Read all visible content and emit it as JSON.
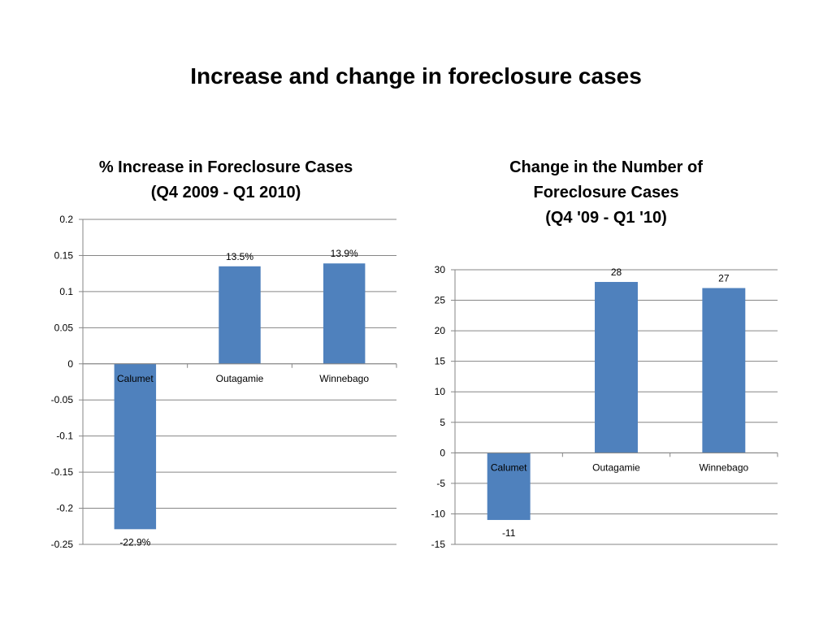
{
  "slide_title": "Increase and change in foreclosure cases",
  "colors": {
    "bar": "#4f81bd",
    "grid": "#868686",
    "text": "#000000"
  },
  "chart_data": [
    {
      "type": "bar",
      "title_lines": [
        "% Increase in Foreclosure Cases",
        "(Q4 2009 - Q1 2010)"
      ],
      "categories": [
        "Calumet",
        "Outagamie",
        "Winnebago"
      ],
      "values": [
        -0.229,
        0.135,
        0.139
      ],
      "data_labels": [
        "-22.9%",
        "13.5%",
        "13.9%"
      ],
      "ylim": [
        -0.25,
        0.2
      ],
      "ytick_labels": [
        "0.2",
        "0.15",
        "0.1",
        "0.05",
        "0",
        "-0.05",
        "-0.1",
        "-0.15",
        "-0.2",
        "-0.25"
      ],
      "grid": true,
      "xlabel": "",
      "ylabel": ""
    },
    {
      "type": "bar",
      "title_lines": [
        "Change in the Number of",
        "Foreclosure Cases",
        "(Q4 '09 - Q1 '10)"
      ],
      "categories": [
        "Calumet",
        "Outagamie",
        "Winnebago"
      ],
      "values": [
        -11,
        28,
        27
      ],
      "data_labels": [
        "-11",
        "28",
        "27"
      ],
      "ylim": [
        -15,
        30
      ],
      "ytick_labels": [
        "30",
        "25",
        "20",
        "15",
        "10",
        "5",
        "0",
        "-5",
        "-10",
        "-15"
      ],
      "grid": true,
      "xlabel": "",
      "ylabel": ""
    }
  ]
}
